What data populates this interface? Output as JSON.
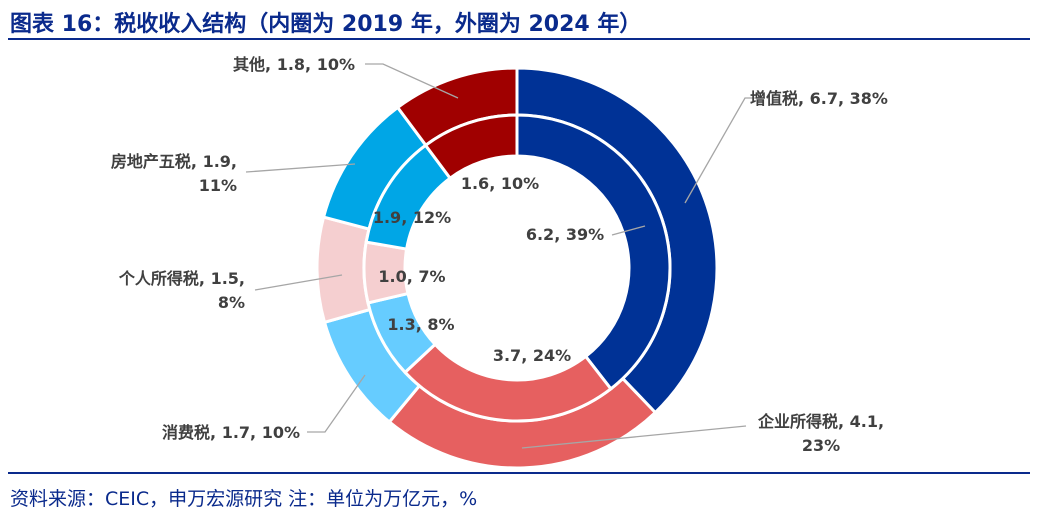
{
  "title": "图表 16：税收收入结构（内圈为 2019 年，外圈为 2024 年）",
  "source": "资料来源：CEIC，申万宏源研究 注：单位为万亿元，%",
  "chart_data": {
    "type": "donut",
    "series": [
      {
        "name": "2019",
        "ring": "inner",
        "labels": [
          "增值税",
          "企业所得税",
          "消费税",
          "个人所得税",
          "房地产五税",
          "其他"
        ],
        "values": [
          6.2,
          3.7,
          1.3,
          1.0,
          1.9,
          1.6
        ],
        "percents": [
          39,
          24,
          8,
          7,
          12,
          10
        ],
        "data_labels": [
          "6.2, 39%",
          "3.7, 24%",
          "1.3, 8%",
          "1.0, 7%",
          "1.9, 12%",
          "1.6, 10%"
        ]
      },
      {
        "name": "2024",
        "ring": "outer",
        "labels": [
          "增值税",
          "企业所得税",
          "消费税",
          "个人所得税",
          "房地产五税",
          "其他"
        ],
        "values": [
          6.7,
          4.1,
          1.7,
          1.5,
          1.9,
          1.8
        ],
        "percents": [
          38,
          23,
          10,
          8,
          11,
          10
        ],
        "data_labels": [
          [
            "增值税, 6.7, 38%"
          ],
          [
            "企业所得税, 4.1,",
            "23%"
          ],
          [
            "消费税, 1.7, 10%"
          ],
          [
            "个人所得税, 1.5,",
            "8%"
          ],
          [
            "房地产五税, 1.9,",
            "11%"
          ],
          [
            "其他, 1.8, 10%"
          ]
        ]
      }
    ],
    "colors": [
      "#003296",
      "#e66060",
      "#66ccff",
      "#f5cfd0",
      "#00a6e6",
      "#a00000"
    ]
  }
}
